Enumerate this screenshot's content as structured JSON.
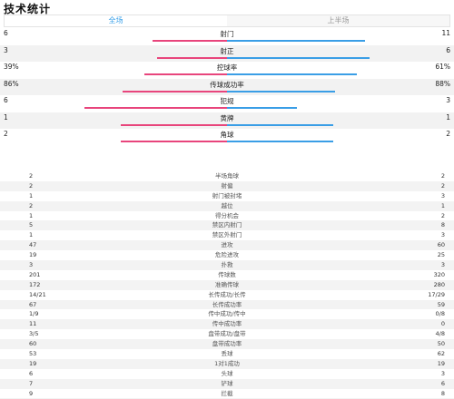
{
  "header": {
    "title": "技术统计"
  },
  "tabs": [
    {
      "label": "全场",
      "active": true
    },
    {
      "label": "上半场",
      "active": false
    }
  ],
  "colors": {
    "home": "#e8457c",
    "away": "#3a9ee6",
    "accent": "#3aa0e8"
  },
  "bar_stats": [
    {
      "label": "射门",
      "left": "6",
      "right": "11",
      "left_frac": 0.35,
      "right_frac": 0.65
    },
    {
      "label": "射正",
      "left": "3",
      "right": "6",
      "left_frac": 0.33,
      "right_frac": 0.67
    },
    {
      "label": "控球率",
      "left": "39%",
      "right": "61%",
      "left_frac": 0.39,
      "right_frac": 0.61
    },
    {
      "label": "传球成功率",
      "left": "86%",
      "right": "88%",
      "left_frac": 0.49,
      "right_frac": 0.51
    },
    {
      "label": "犯规",
      "left": "6",
      "right": "3",
      "left_frac": 0.67,
      "right_frac": 0.33
    },
    {
      "label": "黄牌",
      "left": "1",
      "right": "1",
      "left_frac": 0.5,
      "right_frac": 0.5
    },
    {
      "label": "角球",
      "left": "2",
      "right": "2",
      "left_frac": 0.5,
      "right_frac": 0.5
    }
  ],
  "list_stats": [
    {
      "label": "半场角球",
      "left": "2",
      "right": "2"
    },
    {
      "label": "射偏",
      "left": "2",
      "right": "2"
    },
    {
      "label": "射门被封堵",
      "left": "1",
      "right": "3"
    },
    {
      "label": "越位",
      "left": "2",
      "right": "1"
    },
    {
      "label": "得分机会",
      "left": "1",
      "right": "2"
    },
    {
      "label": "禁区内射门",
      "left": "5",
      "right": "8"
    },
    {
      "label": "禁区外射门",
      "left": "1",
      "right": "3"
    },
    {
      "label": "进攻",
      "left": "47",
      "right": "60"
    },
    {
      "label": "危险进攻",
      "left": "19",
      "right": "25"
    },
    {
      "label": "扑救",
      "left": "3",
      "right": "3"
    },
    {
      "label": "传球数",
      "left": "201",
      "right": "320"
    },
    {
      "label": "准确传球",
      "left": "172",
      "right": "280"
    },
    {
      "label": "长传成功/长传",
      "left": "14/21",
      "right": "17/29"
    },
    {
      "label": "长传成功率",
      "left": "67",
      "right": "59"
    },
    {
      "label": "传中成功/传中",
      "left": "1/9",
      "right": "0/8"
    },
    {
      "label": "传中成功率",
      "left": "11",
      "right": "0"
    },
    {
      "label": "盘带成功/盘带",
      "left": "3/5",
      "right": "4/8"
    },
    {
      "label": "盘带成功率",
      "left": "60",
      "right": "50"
    },
    {
      "label": "丢球",
      "left": "53",
      "right": "62"
    },
    {
      "label": "1对1成功",
      "left": "19",
      "right": "19"
    },
    {
      "label": "头球",
      "left": "6",
      "right": "3"
    },
    {
      "label": "铲球",
      "left": "7",
      "right": "6"
    },
    {
      "label": "拦截",
      "left": "9",
      "right": "8"
    },
    {
      "label": "解围",
      "left": "11",
      "right": "3"
    },
    {
      "label": "先开球",
      "left": "",
      "right": "",
      "right_icon": "star-icon"
    }
  ]
}
